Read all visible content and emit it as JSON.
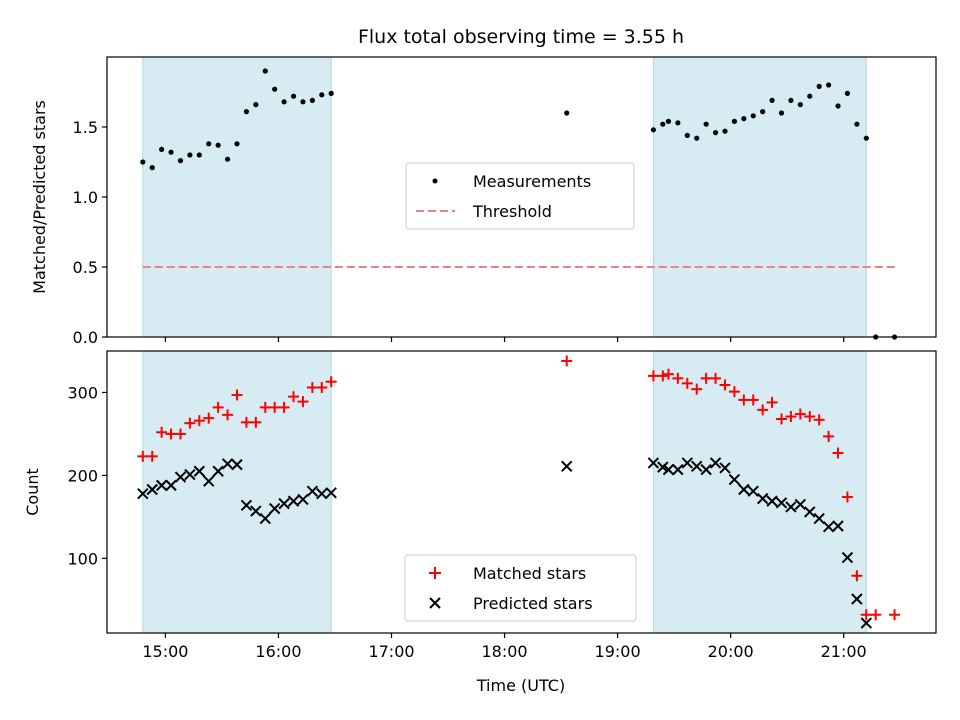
{
  "chart_data": {
    "title": "Flux total observing time = 3.55 h",
    "xlabel": "Time (UTC)",
    "x_unit": "hours UTC",
    "xlim": [
      "14:29",
      "21:49"
    ],
    "x_ticks": [
      "15:00",
      "16:00",
      "17:00",
      "18:00",
      "19:00",
      "20:00",
      "21:00"
    ],
    "observing_windows": [
      [
        "14:48",
        "16:28"
      ],
      [
        "19:19",
        "21:12"
      ]
    ],
    "window_color": "#add8e6",
    "panels": [
      {
        "type": "scatter",
        "ylabel": "Matched/Predicted stars",
        "ylim": [
          0,
          2.0
        ],
        "y_ticks": [
          "0.0",
          "0.5",
          "1.0",
          "1.5"
        ],
        "legend": {
          "placement": "center",
          "entries": [
            "Measurements",
            "Threshold"
          ]
        },
        "series": [
          {
            "name": "Measurements",
            "marker": "dot",
            "color": "#000000",
            "points": [
              [
                "14:48",
                1.25
              ],
              [
                "14:53",
                1.21
              ],
              [
                "14:58",
                1.34
              ],
              [
                "15:03",
                1.32
              ],
              [
                "15:08",
                1.26
              ],
              [
                "15:13",
                1.3
              ],
              [
                "15:18",
                1.3
              ],
              [
                "15:23",
                1.38
              ],
              [
                "15:28",
                1.37
              ],
              [
                "15:33",
                1.27
              ],
              [
                "15:38",
                1.38
              ],
              [
                "15:43",
                1.61
              ],
              [
                "15:48",
                1.66
              ],
              [
                "15:53",
                1.9
              ],
              [
                "15:58",
                1.77
              ],
              [
                "16:03",
                1.68
              ],
              [
                "16:08",
                1.72
              ],
              [
                "16:13",
                1.68
              ],
              [
                "16:18",
                1.69
              ],
              [
                "16:23",
                1.73
              ],
              [
                "16:28",
                1.74
              ],
              [
                "18:33",
                1.6
              ],
              [
                "19:19",
                1.48
              ],
              [
                "19:24",
                1.52
              ],
              [
                "19:27",
                1.54
              ],
              [
                "19:32",
                1.53
              ],
              [
                "19:37",
                1.44
              ],
              [
                "19:42",
                1.42
              ],
              [
                "19:47",
                1.52
              ],
              [
                "19:52",
                1.46
              ],
              [
                "19:57",
                1.47
              ],
              [
                "20:02",
                1.54
              ],
              [
                "20:07",
                1.56
              ],
              [
                "20:12",
                1.58
              ],
              [
                "20:17",
                1.61
              ],
              [
                "20:22",
                1.69
              ],
              [
                "20:27",
                1.6
              ],
              [
                "20:32",
                1.69
              ],
              [
                "20:37",
                1.66
              ],
              [
                "20:42",
                1.72
              ],
              [
                "20:47",
                1.79
              ],
              [
                "20:52",
                1.8
              ],
              [
                "20:57",
                1.65
              ],
              [
                "21:02",
                1.74
              ],
              [
                "21:07",
                1.52
              ],
              [
                "21:12",
                1.42
              ],
              [
                "21:17",
                0.0
              ],
              [
                "21:27",
                0.0
              ]
            ]
          },
          {
            "name": "Threshold",
            "type": "line",
            "style": "dashed",
            "color": "#f08080",
            "points": [
              [
                "14:48",
                0.5
              ],
              [
                "21:29",
                0.5
              ]
            ]
          }
        ]
      },
      {
        "type": "scatter",
        "ylabel": "Count",
        "ylim": [
          10,
          350
        ],
        "y_ticks": [
          "100",
          "200",
          "300"
        ],
        "legend": {
          "placement": "bottom-center",
          "entries": [
            "Matched stars",
            "Predicted stars"
          ]
        },
        "series": [
          {
            "name": "Matched stars",
            "marker": "plus",
            "color": "#ff0000",
            "points": [
              [
                "14:48",
                223
              ],
              [
                "14:53",
                223
              ],
              [
                "14:58",
                252
              ],
              [
                "15:03",
                250
              ],
              [
                "15:08",
                250
              ],
              [
                "15:13",
                263
              ],
              [
                "15:18",
                266
              ],
              [
                "15:23",
                269
              ],
              [
                "15:28",
                282
              ],
              [
                "15:33",
                273
              ],
              [
                "15:38",
                297
              ],
              [
                "15:43",
                264
              ],
              [
                "15:48",
                264
              ],
              [
                "15:53",
                282
              ],
              [
                "15:58",
                282
              ],
              [
                "16:03",
                282
              ],
              [
                "16:08",
                295
              ],
              [
                "16:13",
                289
              ],
              [
                "16:18",
                306
              ],
              [
                "16:23",
                306
              ],
              [
                "16:28",
                313
              ],
              [
                "18:33",
                338
              ],
              [
                "19:19",
                320
              ],
              [
                "19:24",
                320
              ],
              [
                "19:27",
                322
              ],
              [
                "19:32",
                317
              ],
              [
                "19:37",
                311
              ],
              [
                "19:42",
                304
              ],
              [
                "19:47",
                317
              ],
              [
                "19:52",
                317
              ],
              [
                "19:57",
                309
              ],
              [
                "20:02",
                301
              ],
              [
                "20:07",
                291
              ],
              [
                "20:12",
                291
              ],
              [
                "20:17",
                279
              ],
              [
                "20:22",
                288
              ],
              [
                "20:27",
                268
              ],
              [
                "20:32",
                271
              ],
              [
                "20:37",
                274
              ],
              [
                "20:42",
                271
              ],
              [
                "20:47",
                267
              ],
              [
                "20:52",
                247
              ],
              [
                "20:57",
                227
              ],
              [
                "21:02",
                174
              ],
              [
                "21:07",
                79
              ],
              [
                "21:12",
                32
              ],
              [
                "21:17",
                32
              ],
              [
                "21:27",
                32
              ]
            ]
          },
          {
            "name": "Predicted stars",
            "marker": "x",
            "color": "#000000",
            "points": [
              [
                "14:48",
                178
              ],
              [
                "14:53",
                183
              ],
              [
                "14:58",
                188
              ],
              [
                "15:03",
                188
              ],
              [
                "15:08",
                198
              ],
              [
                "15:13",
                201
              ],
              [
                "15:18",
                205
              ],
              [
                "15:23",
                193
              ],
              [
                "15:28",
                205
              ],
              [
                "15:33",
                214
              ],
              [
                "15:38",
                213
              ],
              [
                "15:43",
                164
              ],
              [
                "15:48",
                157
              ],
              [
                "15:53",
                148
              ],
              [
                "15:58",
                160
              ],
              [
                "16:03",
                166
              ],
              [
                "16:08",
                169
              ],
              [
                "16:13",
                171
              ],
              [
                "16:18",
                181
              ],
              [
                "16:23",
                178
              ],
              [
                "16:28",
                179
              ],
              [
                "18:33",
                211
              ],
              [
                "19:19",
                215
              ],
              [
                "19:24",
                210
              ],
              [
                "19:27",
                207
              ],
              [
                "19:32",
                207
              ],
              [
                "19:37",
                215
              ],
              [
                "19:42",
                211
              ],
              [
                "19:47",
                207
              ],
              [
                "19:52",
                215
              ],
              [
                "19:57",
                209
              ],
              [
                "20:02",
                195
              ],
              [
                "20:07",
                183
              ],
              [
                "20:12",
                181
              ],
              [
                "20:17",
                172
              ],
              [
                "20:22",
                169
              ],
              [
                "20:27",
                167
              ],
              [
                "20:32",
                162
              ],
              [
                "20:37",
                165
              ],
              [
                "20:42",
                156
              ],
              [
                "20:47",
                148
              ],
              [
                "20:52",
                138
              ],
              [
                "20:57",
                139
              ],
              [
                "21:02",
                101
              ],
              [
                "21:07",
                51
              ],
              [
                "21:12",
                22
              ]
            ]
          }
        ]
      }
    ]
  }
}
